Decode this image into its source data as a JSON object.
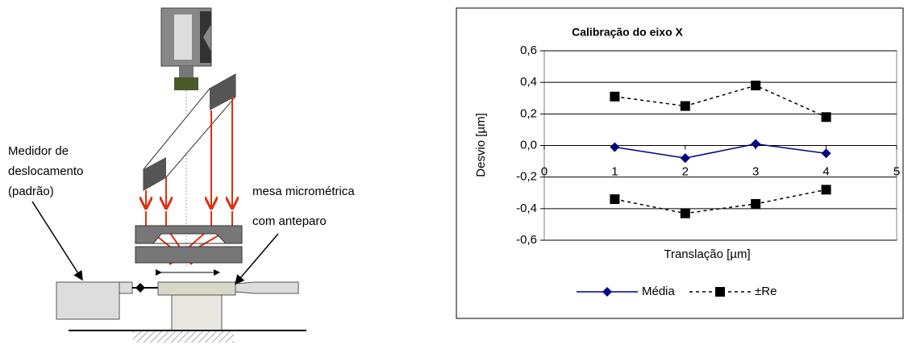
{
  "diagram": {
    "labels": [
      "Medidor de",
      "deslocamento",
      "(padrão)",
      "mesa micrométrica",
      "com anteparo"
    ]
  },
  "chart_data": {
    "type": "line",
    "title": "Calibração do eixo X",
    "x_label": "Translação [µm]",
    "y_label": "Desvio [µm]",
    "x": [
      1,
      2,
      3,
      4
    ],
    "series": [
      {
        "name": "Média",
        "color": "#000080",
        "values": [
          -0.01,
          -0.08,
          0.01,
          -0.05
        ]
      },
      {
        "name": "±Re",
        "color": "#000000",
        "values": [
          0.31,
          0.25,
          0.38,
          0.18
        ],
        "lower": [
          -0.34,
          -0.43,
          -0.37,
          -0.28
        ]
      }
    ],
    "xlim": [
      0,
      5
    ],
    "xticks": [
      0,
      1,
      2,
      3,
      4,
      5
    ],
    "ylim": [
      -0.6,
      0.6
    ],
    "yticks": [
      {
        "value": -0.6,
        "label": "-0,6"
      },
      {
        "value": -0.4,
        "label": "-0,4"
      },
      {
        "value": -0.2,
        "label": "-0,2"
      },
      {
        "value": 0,
        "label": "0,0"
      },
      {
        "value": 0.2,
        "label": "0,2"
      },
      {
        "value": 0.4,
        "label": "0,4"
      },
      {
        "value": 0.6,
        "label": "0,6"
      }
    ],
    "grid": true
  }
}
